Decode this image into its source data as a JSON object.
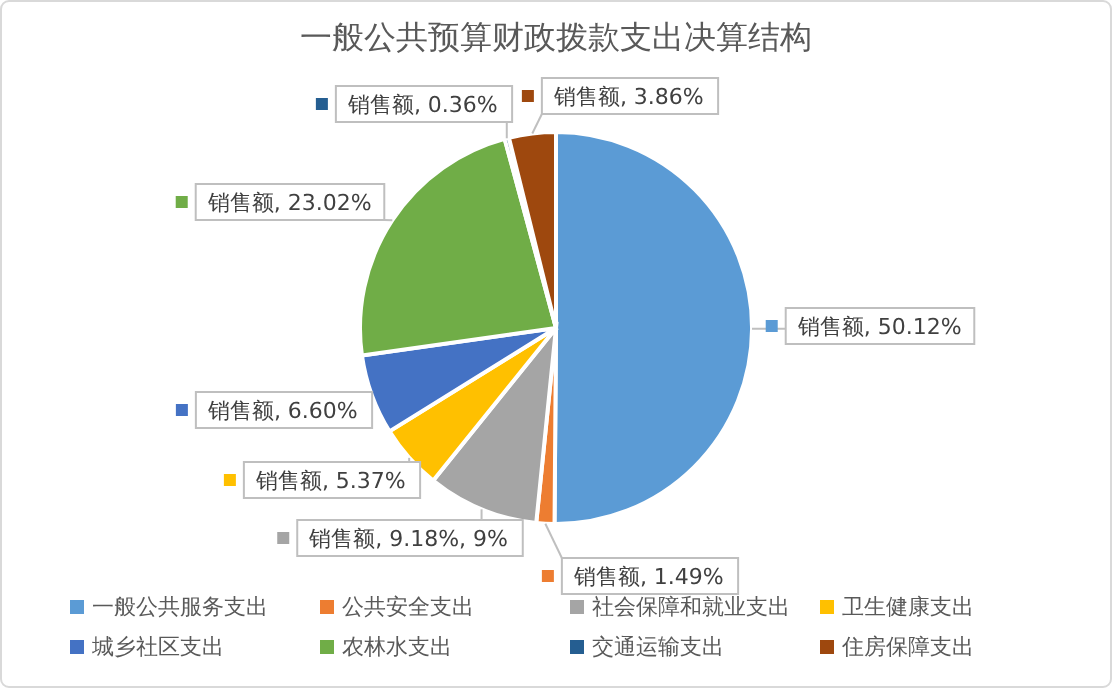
{
  "chart_data": {
    "type": "pie",
    "title": "一般公共预算财政拨款支出决算结构",
    "categories": [
      "一般公共服务支出",
      "公共安全支出",
      "社会保障和就业支出",
      "卫生健康支出",
      "城乡社区支出",
      "农林水支出",
      "交通运输支出",
      "住房保障支出"
    ],
    "values": [
      50.12,
      1.49,
      9.18,
      5.37,
      6.6,
      23.02,
      0.36,
      3.86
    ],
    "colors": [
      "#5b9bd5",
      "#ed7d31",
      "#a5a5a5",
      "#ffc000",
      "#4472c4",
      "#70ad47",
      "#255e91",
      "#9e480e"
    ],
    "value_labels": [
      "销售额, 50.12%",
      "销售额, 1.49%",
      "销售额, 9.18%, 9%",
      "销售额, 5.37%",
      "销售额, 6.60%",
      "销售额, 23.02%",
      "销售额, 0.36%",
      "销售额, 3.86%"
    ],
    "legend": "bottom"
  }
}
